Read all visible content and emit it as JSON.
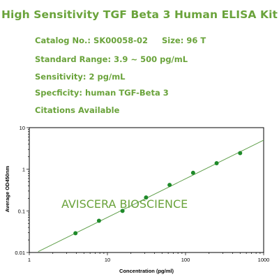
{
  "header": {
    "title": "High Sensitivity TGF Beta 3 Human ELISA Kit",
    "catalog": "Catalog No.: SK00058-02",
    "size": "Size: 96 T",
    "range": "Standard Range: 3.9 ~ 500 pg/mL",
    "sensitivity": "Sensitivity: 2 pg/mL",
    "specificity": "Specficity: human TGF-Beta 3",
    "citations": "Citations Available"
  },
  "colors": {
    "accent": "#6aa33b",
    "points": "#1f8a2a",
    "fit_line": "#5f9f4a"
  },
  "chart_data": {
    "type": "scatter",
    "x_scale": "log",
    "y_scale": "log",
    "xlim": [
      1,
      1000
    ],
    "ylim": [
      0.01,
      10
    ],
    "xlabel": "Concentration (pg/ml)",
    "ylabel": "Average OD450nm",
    "x_ticks": [
      "1",
      "10",
      "100",
      "1000"
    ],
    "y_ticks": [
      "0.01",
      "0.1",
      "1",
      "10"
    ],
    "watermark": "AVISCERA BIOSCIENCE",
    "points": [
      {
        "x": 3.9,
        "y": 0.029
      },
      {
        "x": 7.8,
        "y": 0.058
      },
      {
        "x": 15.6,
        "y": 0.1
      },
      {
        "x": 31.25,
        "y": 0.21
      },
      {
        "x": 62.5,
        "y": 0.42
      },
      {
        "x": 125,
        "y": 0.82
      },
      {
        "x": 250,
        "y": 1.4
      },
      {
        "x": 500,
        "y": 2.45
      }
    ],
    "fit_line": {
      "x": [
        1.3,
        1000
      ],
      "y": [
        0.0105,
        5.0
      ]
    }
  }
}
